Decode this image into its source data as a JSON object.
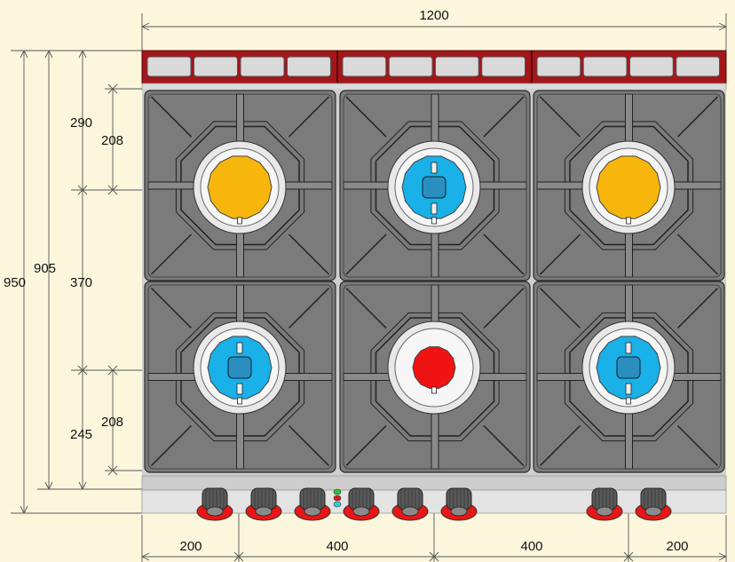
{
  "dimensions": {
    "overall_width": "1200",
    "overall_depth": "950",
    "depth_without_rail": "905",
    "front_rows": "290",
    "middle_row": "370",
    "rear_rows": "245",
    "upper_burner_offset": "208",
    "lower_burner_offset": "208",
    "bottom": [
      "200",
      "400",
      "400",
      "200"
    ]
  },
  "colors": {
    "background": "#fbf6dc",
    "rail_red": "#a3161a",
    "grate_gray": "#7b7b7b",
    "burner_yellow": "#f7b60c",
    "burner_blue": "#1ab0e8",
    "burner_red": "#f01313",
    "knob_red": "#e81616",
    "indicator_green": "#26c43a",
    "indicator_red": "#d81b1b",
    "indicator_cyan": "#2bd0d8"
  },
  "burners": [
    {
      "pos": "top-left",
      "color": "yellow"
    },
    {
      "pos": "top-center",
      "color": "blue"
    },
    {
      "pos": "top-right",
      "color": "yellow"
    },
    {
      "pos": "bottom-left",
      "color": "blue"
    },
    {
      "pos": "bottom-center",
      "color": "red"
    },
    {
      "pos": "bottom-right",
      "color": "blue"
    }
  ],
  "knob_count": 8,
  "indicator_lights": [
    "green",
    "red",
    "cyan"
  ]
}
